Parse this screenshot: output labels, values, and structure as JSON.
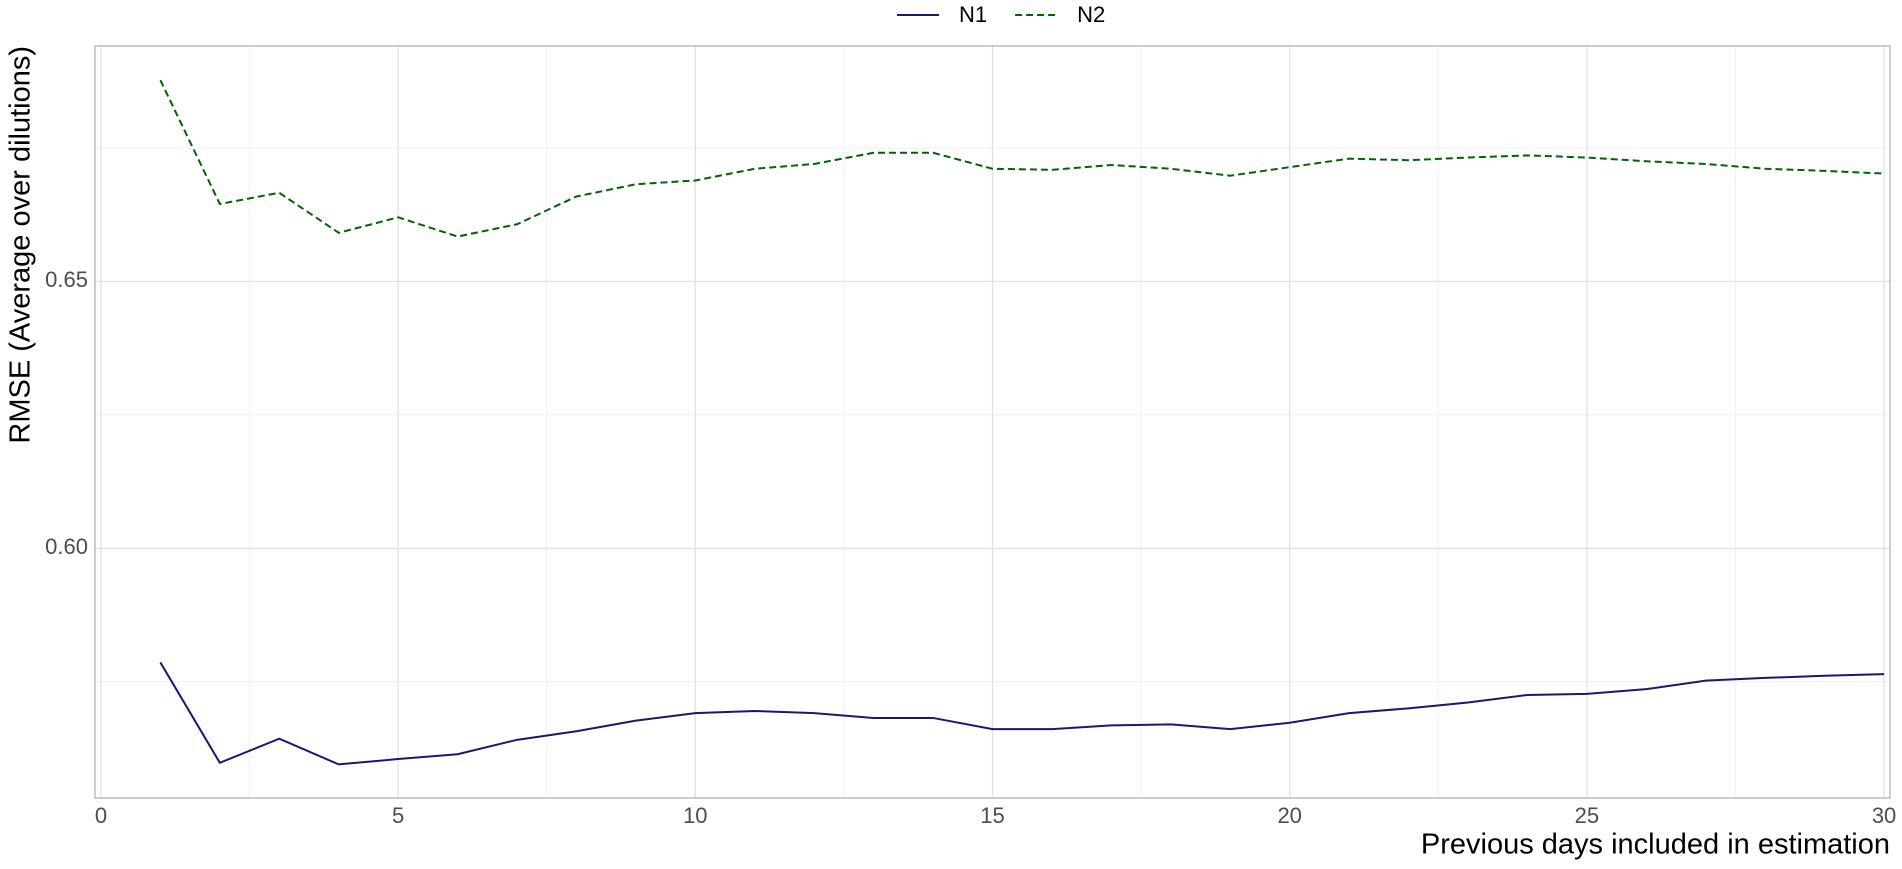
{
  "chart_data": {
    "type": "line",
    "x_label": "Previous days included in estimation",
    "y_label": "RMSE (Average over dilutions)",
    "x": [
      1,
      2,
      3,
      4,
      5,
      6,
      7,
      8,
      9,
      10,
      11,
      12,
      13,
      14,
      15,
      16,
      17,
      18,
      19,
      20,
      21,
      22,
      23,
      24,
      25,
      26,
      27,
      28,
      29,
      30
    ],
    "series": [
      {
        "name": "N1",
        "color": "#191970",
        "linestyle": "solid",
        "values": [
          0.5786,
          0.5598,
          0.5643,
          0.5595,
          0.5605,
          0.5614,
          0.5641,
          0.5657,
          0.5677,
          0.5691,
          0.5695,
          0.5691,
          0.5682,
          0.5682,
          0.5661,
          0.5661,
          0.5668,
          0.567,
          0.5661,
          0.5673,
          0.5691,
          0.57,
          0.5711,
          0.5725,
          0.5727,
          0.5736,
          0.5752,
          0.5757,
          0.5761,
          0.5764
        ]
      },
      {
        "name": "N2",
        "color": "#006400",
        "linestyle": "dashed",
        "values": [
          0.6877,
          0.6645,
          0.6666,
          0.6591,
          0.662,
          0.6584,
          0.6607,
          0.6659,
          0.6682,
          0.6689,
          0.6711,
          0.672,
          0.6741,
          0.6741,
          0.6711,
          0.6709,
          0.6718,
          0.6711,
          0.6698,
          0.6714,
          0.673,
          0.6727,
          0.6732,
          0.6736,
          0.6732,
          0.6725,
          0.672,
          0.6711,
          0.6707,
          0.6702
        ]
      }
    ],
    "xlim": [
      -0.1,
      30.1
    ],
    "xticks": [
      0,
      5,
      10,
      15,
      20,
      25,
      30
    ],
    "ylim": [
      0.5532,
      0.6941
    ],
    "yticks": [
      {
        "value": 0.6,
        "label": "0.60"
      },
      0.65
    ],
    "grid": true,
    "minor_grid": true,
    "legend": "top"
  }
}
